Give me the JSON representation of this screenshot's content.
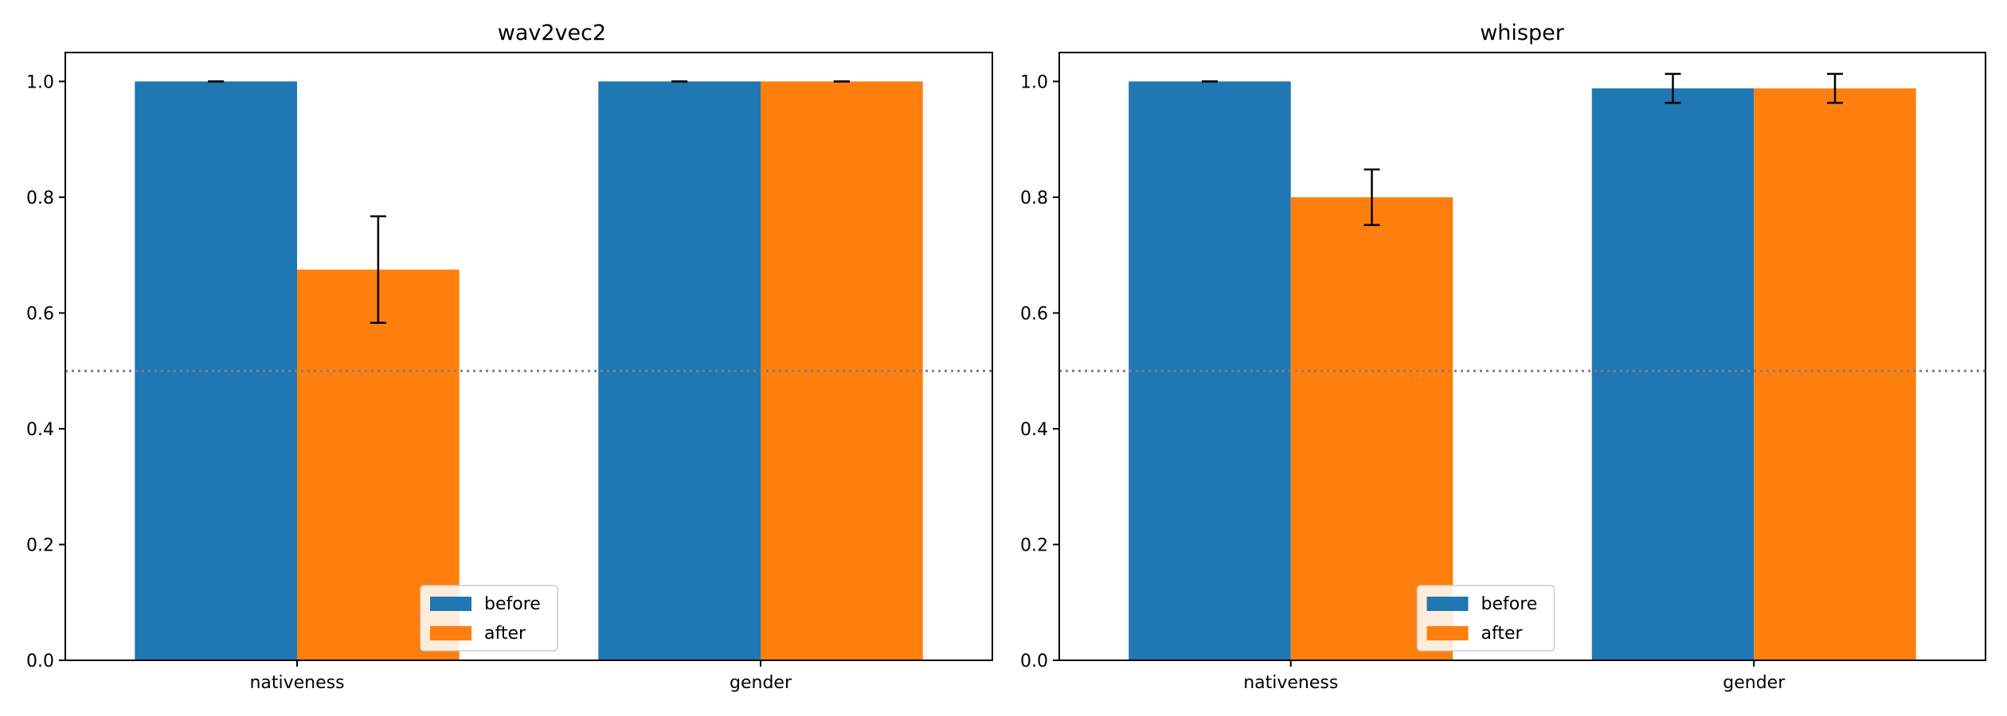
{
  "chart_data": [
    {
      "type": "bar",
      "title": "wav2vec2",
      "categories": [
        "nativeness",
        "gender"
      ],
      "series": [
        {
          "name": "before",
          "values": [
            1.0,
            1.0
          ],
          "errors": [
            0.0,
            0.0
          ],
          "color": "#1f77b4"
        },
        {
          "name": "after",
          "values": [
            0.675,
            1.0
          ],
          "errors": [
            0.092,
            0.0
          ],
          "color": "#ff7f0e"
        }
      ],
      "ylim": [
        0,
        1.05
      ],
      "yticks": [
        "0.0",
        "0.2",
        "0.4",
        "0.6",
        "0.8",
        "1.0"
      ],
      "reference_line": {
        "value": 0.5,
        "style": "dotted",
        "color": "#808080"
      },
      "legend": {
        "position": "lower-right"
      },
      "grid": false
    },
    {
      "type": "bar",
      "title": "whisper",
      "categories": [
        "nativeness",
        "gender"
      ],
      "series": [
        {
          "name": "before",
          "values": [
            1.0,
            0.988
          ],
          "errors": [
            0.0,
            0.025
          ],
          "color": "#1f77b4"
        },
        {
          "name": "after",
          "values": [
            0.8,
            0.988
          ],
          "errors": [
            0.048,
            0.025
          ],
          "color": "#ff7f0e"
        }
      ],
      "ylim": [
        0,
        1.05
      ],
      "yticks": [
        "0.0",
        "0.2",
        "0.4",
        "0.6",
        "0.8",
        "1.0"
      ],
      "reference_line": {
        "value": 0.5,
        "style": "dotted",
        "color": "#808080"
      },
      "legend": {
        "position": "lower-right"
      },
      "grid": false
    }
  ]
}
